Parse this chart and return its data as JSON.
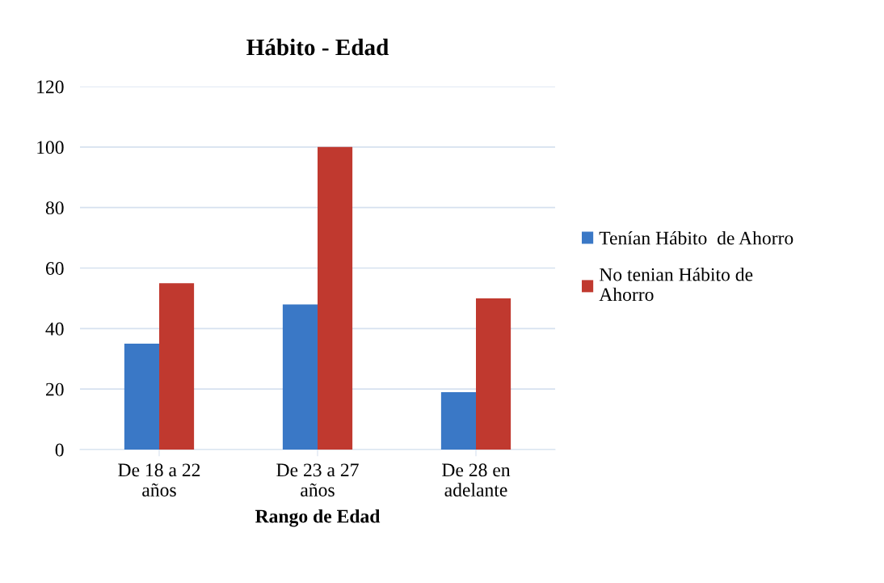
{
  "chart_data": {
    "type": "bar",
    "title": "Hábito - Edad",
    "xlabel": "Rango de Edad",
    "categories": [
      "De 18 a 22\naños",
      "De 23 a 27\naños",
      "De 28 en\nadelante"
    ],
    "series": [
      {
        "name": "Tenían Hábito  de Ahorro",
        "color": "#3a78c6",
        "values": [
          35,
          48,
          19
        ]
      },
      {
        "name": "No tenian Hábito de\nAhorro",
        "color": "#c0392f",
        "values": [
          55,
          100,
          50
        ]
      }
    ],
    "ylim": [
      0,
      120
    ],
    "yticks": [
      0,
      20,
      40,
      60,
      80,
      100,
      120
    ],
    "grid": "y",
    "legend": "right"
  }
}
